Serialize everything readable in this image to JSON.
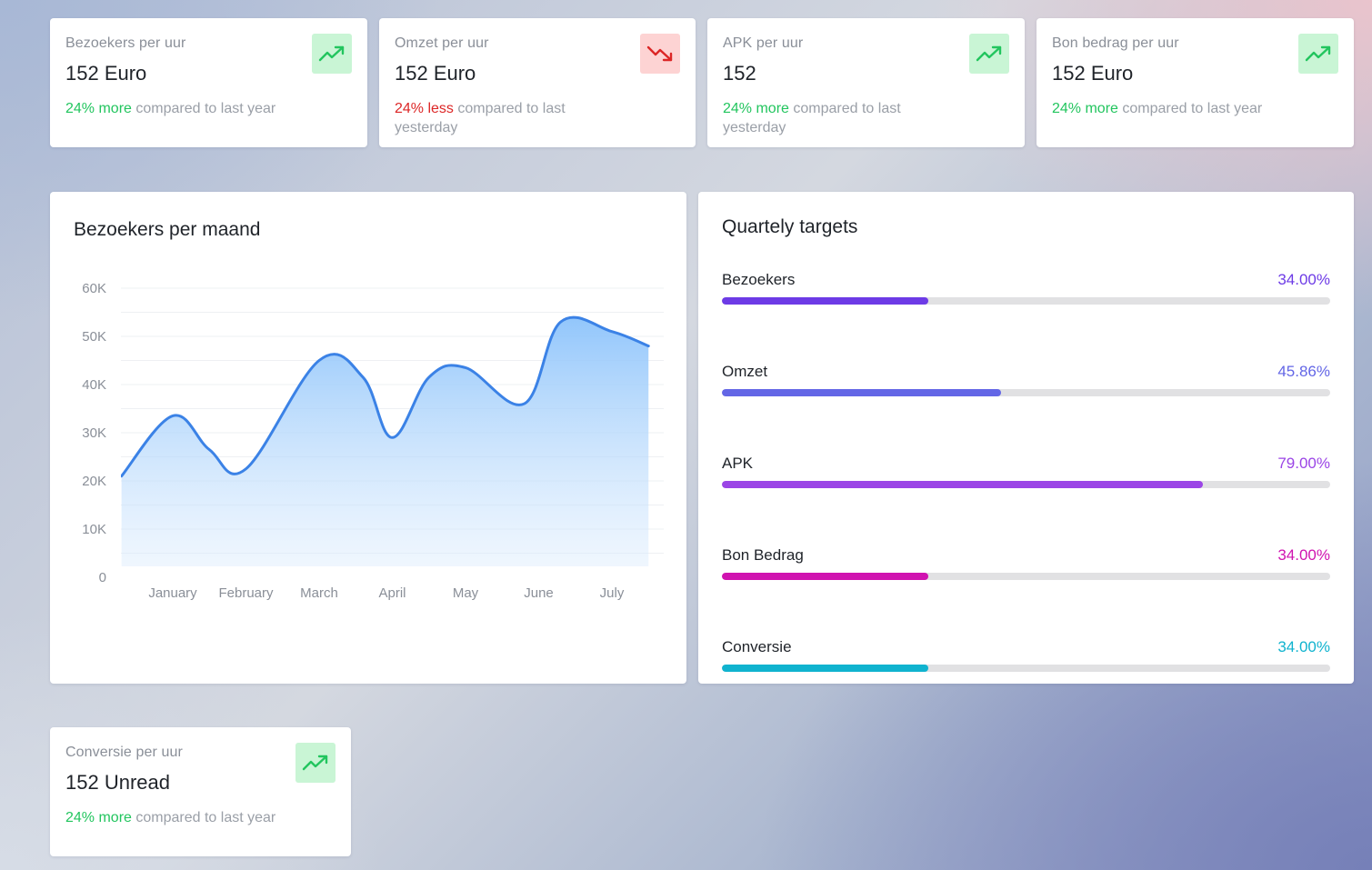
{
  "stats": [
    {
      "label": "Bezoekers per uur",
      "value": "152 Euro",
      "delta": "24% more",
      "suffix": "compared to last year",
      "trend": "up",
      "icon": "trending-up-icon"
    },
    {
      "label": "Omzet per uur",
      "value": "152 Euro",
      "delta": "24% less",
      "suffix": "compared to last yesterday",
      "trend": "down",
      "icon": "trending-down-icon"
    },
    {
      "label": "APK per uur",
      "value": "152",
      "delta": "24% more",
      "suffix": "compared to last yesterday",
      "trend": "up",
      "icon": "trending-up-icon"
    },
    {
      "label": "Bon bedrag per uur",
      "value": "152 Euro",
      "delta": "24% more",
      "suffix": "compared to last year",
      "trend": "up",
      "icon": "trending-up-icon"
    },
    {
      "label": "Conversie per uur",
      "value": "152 Unread",
      "delta": "24% more",
      "suffix": "compared to last year",
      "trend": "up",
      "icon": "trending-up-icon"
    }
  ],
  "colors": {
    "up": "#22c55e",
    "down": "#dc2626",
    "line": "#3b82e6",
    "area": "#93c5fd"
  },
  "visitors_chart": {
    "title": "Bezoekers per maand",
    "chart_data": {
      "type": "area",
      "title": "Bezoekers per maand",
      "xlabel": "",
      "ylabel": "",
      "ylim": [
        0,
        60000
      ],
      "y_ticks": [
        "0",
        "10K",
        "20K",
        "30K",
        "40K",
        "50K",
        "60K"
      ],
      "categories": [
        "January",
        "February",
        "March",
        "April",
        "May",
        "June",
        "July"
      ],
      "series": [
        {
          "x": [
            -0.7,
            0,
            0.5,
            1,
            2,
            2.6,
            3,
            3.5,
            4,
            4.8,
            5.3,
            6,
            6.5
          ],
          "values": [
            21000,
            33500,
            26500,
            22500,
            45000,
            41500,
            29000,
            41500,
            43500,
            36000,
            53000,
            51000,
            48000
          ]
        }
      ],
      "grid": true,
      "legend": "none"
    }
  },
  "targets": {
    "title": "Quartely targets",
    "items": [
      {
        "name": "Bezoekers",
        "percent_label": "34.00%",
        "value": 34.0,
        "color": "#6d3be6"
      },
      {
        "name": "Omzet",
        "percent_label": "45.86%",
        "value": 45.86,
        "color": "#6366e6"
      },
      {
        "name": "APK",
        "percent_label": "79.00%",
        "value": 79.0,
        "color": "#9b45e6"
      },
      {
        "name": "Bon Bedrag",
        "percent_label": "34.00%",
        "value": 34.0,
        "color": "#d013b0"
      },
      {
        "name": "Conversie",
        "percent_label": "34.00%",
        "value": 34.0,
        "color": "#10b3cf"
      }
    ]
  }
}
